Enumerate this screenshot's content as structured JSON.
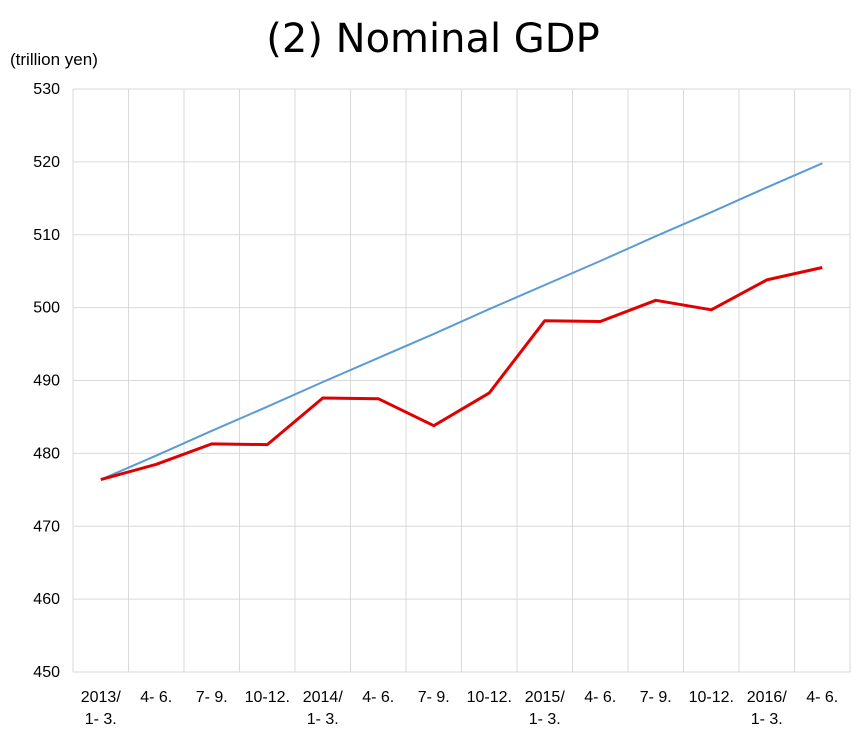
{
  "chart_data": {
    "type": "line",
    "title": "(2) Nominal GDP",
    "ylabel": "(trillion yen)",
    "ylim": [
      450,
      530
    ],
    "yticks": [
      450,
      460,
      470,
      480,
      490,
      500,
      510,
      520,
      530
    ],
    "grid": true,
    "categories": [
      [
        "2013/",
        "1- 3."
      ],
      [
        "4- 6."
      ],
      [
        "7- 9."
      ],
      [
        "10-12."
      ],
      [
        "2014/",
        "1- 3."
      ],
      [
        "4- 6."
      ],
      [
        "7- 9."
      ],
      [
        "10-12."
      ],
      [
        "2015/",
        "1- 3."
      ],
      [
        "4- 6."
      ],
      [
        "7- 9."
      ],
      [
        "10-12."
      ],
      [
        "2016/",
        "1- 3."
      ],
      [
        "4- 6."
      ]
    ],
    "series": [
      {
        "color": "#e00000",
        "values": [
          476.4,
          478.5,
          481.3,
          481.2,
          487.6,
          487.5,
          483.8,
          488.3,
          498.2,
          498.1,
          501.0,
          499.7,
          503.8,
          505.5
        ]
      },
      {
        "color": "#5b9bd5",
        "values": [
          476.4,
          479.7,
          483.1,
          486.4,
          489.8,
          493.1,
          496.4,
          499.8,
          503.1,
          506.4,
          509.8,
          513.1,
          516.5,
          519.8
        ]
      }
    ]
  }
}
